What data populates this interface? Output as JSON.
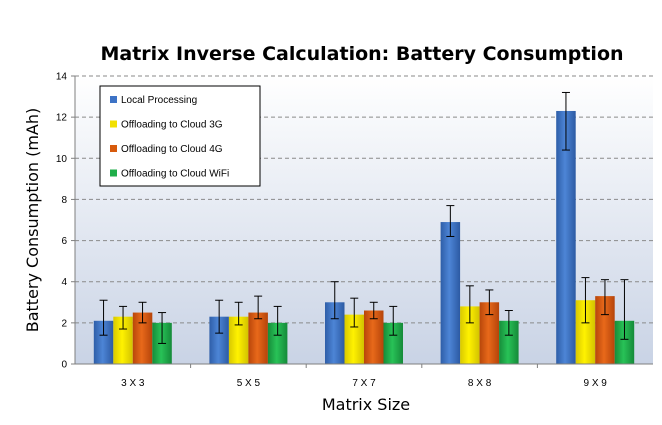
{
  "chart_data": {
    "type": "bar",
    "title": "Matrix Inverse Calculation: Battery Consumption",
    "xlabel": "Matrix Size",
    "ylabel": "Battery Consumption (mAh)",
    "ylim": [
      0,
      14
    ],
    "yticks": [
      "0",
      "2",
      "4",
      "6",
      "8",
      "10",
      "12",
      "14"
    ],
    "grid": "horizontal dashed",
    "legend_position": "top-left",
    "categories": [
      "3 X 3",
      "5 X 5",
      "7 X 7",
      "8 X 8",
      "9 X 9"
    ],
    "series": [
      {
        "name": "Local Processing",
        "color": "#3d73c6",
        "values": [
          2.1,
          2.3,
          3.0,
          6.9,
          12.3
        ],
        "error_low": [
          1.4,
          1.5,
          2.2,
          6.2,
          10.4
        ],
        "error_high": [
          3.1,
          3.1,
          4.0,
          7.7,
          13.2
        ]
      },
      {
        "name": "Offloading to Cloud 3G",
        "color": "#f2e000",
        "values": [
          2.3,
          2.3,
          2.4,
          2.8,
          3.1
        ],
        "error_low": [
          1.7,
          1.9,
          1.8,
          2.0,
          2.0
        ],
        "error_high": [
          2.8,
          3.0,
          3.2,
          3.8,
          4.2
        ]
      },
      {
        "name": "Offloading to Cloud 4G",
        "color": "#d75a0c",
        "values": [
          2.5,
          2.5,
          2.6,
          3.0,
          3.3
        ],
        "error_low": [
          2.0,
          2.2,
          2.2,
          2.4,
          2.4
        ],
        "error_high": [
          3.0,
          3.3,
          3.0,
          3.6,
          4.1
        ]
      },
      {
        "name": "Offloading to Cloud WiFi",
        "color": "#1fae4a",
        "values": [
          2.0,
          2.0,
          2.0,
          2.1,
          2.1
        ],
        "error_low": [
          1.0,
          1.4,
          1.4,
          1.4,
          1.2
        ],
        "error_high": [
          2.5,
          2.8,
          2.8,
          2.6,
          4.1
        ]
      }
    ]
  }
}
